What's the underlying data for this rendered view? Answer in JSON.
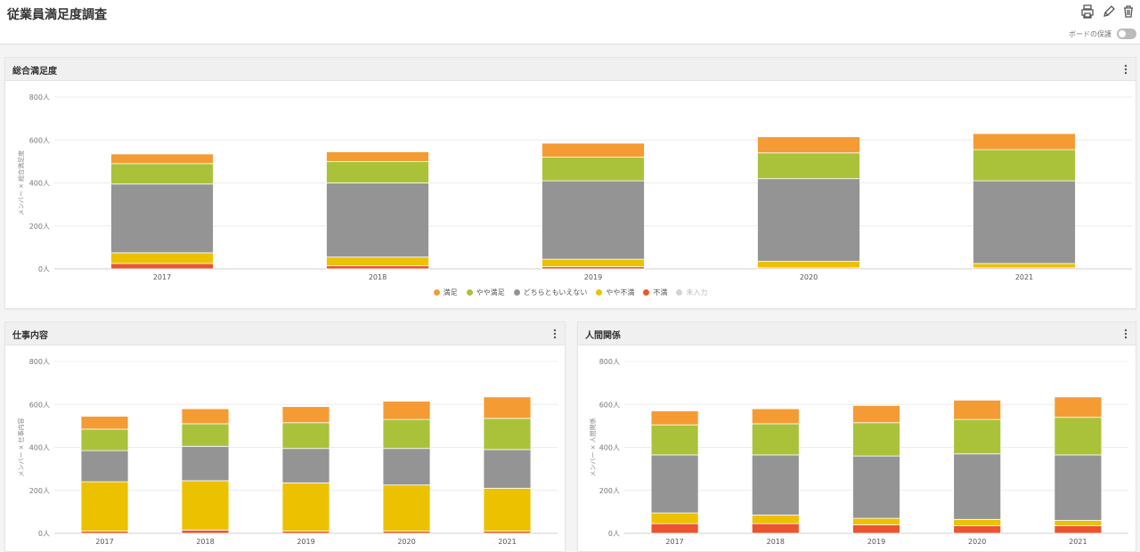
{
  "page": {
    "title": "従業員満足度調査",
    "protect_label": "ボードの保護",
    "icons": {
      "print": "print-icon",
      "edit": "pencil-icon",
      "delete": "trash-icon",
      "menu": "kebab-menu-icon"
    }
  },
  "colors": {
    "満足": "#f59b34",
    "やや満足": "#a9c23a",
    "どちらともいえない": "#949494",
    "やや不満": "#ecc100",
    "不満": "#ec5430",
    "未入力": "#d3d3d3"
  },
  "legend": [
    "満足",
    "やや満足",
    "どちらともいえない",
    "やや不満",
    "不満",
    "未入力"
  ],
  "chart_data": [
    {
      "type": "bar",
      "stacked": true,
      "title": "総合満足度",
      "ylabel": "メンバー × 総合満足度",
      "ylim": [
        0,
        800
      ],
      "yticks": [
        "0人",
        "200人",
        "400人",
        "600人",
        "800人"
      ],
      "yticks_values": [
        0,
        200,
        400,
        600,
        800
      ],
      "categories": [
        "2017",
        "2018",
        "2019",
        "2020",
        "2021"
      ],
      "series": [
        {
          "name": "不満",
          "values": [
            25,
            15,
            10,
            5,
            5
          ]
        },
        {
          "name": "やや不満",
          "values": [
            50,
            40,
            35,
            30,
            20
          ]
        },
        {
          "name": "どちらともいえない",
          "values": [
            320,
            345,
            365,
            385,
            385
          ]
        },
        {
          "name": "やや満足",
          "values": [
            95,
            100,
            110,
            120,
            145
          ]
        },
        {
          "name": "満足",
          "values": [
            45,
            45,
            65,
            75,
            75
          ]
        }
      ],
      "legend": "bottom-center"
    },
    {
      "type": "bar",
      "stacked": true,
      "title": "仕事内容",
      "ylabel": "メンバー × 仕事内容",
      "ylim": [
        0,
        800
      ],
      "yticks": [
        "0人",
        "200人",
        "400人",
        "600人",
        "800人"
      ],
      "yticks_values": [
        0,
        200,
        400,
        600,
        800
      ],
      "categories": [
        "2017",
        "2018",
        "2019",
        "2020",
        "2021"
      ],
      "series": [
        {
          "name": "不満",
          "values": [
            10,
            15,
            10,
            10,
            10
          ]
        },
        {
          "name": "やや不満",
          "values": [
            230,
            230,
            225,
            215,
            200
          ]
        },
        {
          "name": "どちらともいえない",
          "values": [
            145,
            160,
            160,
            170,
            180
          ]
        },
        {
          "name": "やや満足",
          "values": [
            100,
            105,
            120,
            135,
            145
          ]
        },
        {
          "name": "満足",
          "values": [
            60,
            70,
            75,
            85,
            100
          ]
        }
      ]
    },
    {
      "type": "bar",
      "stacked": true,
      "title": "人間関係",
      "ylabel": "メンバー × 人間関係",
      "ylim": [
        0,
        800
      ],
      "yticks": [
        "0人",
        "200人",
        "400人",
        "600人",
        "800人"
      ],
      "yticks_values": [
        0,
        200,
        400,
        600,
        800
      ],
      "categories": [
        "2017",
        "2018",
        "2019",
        "2020",
        "2021"
      ],
      "series": [
        {
          "name": "不満",
          "values": [
            45,
            45,
            40,
            35,
            35
          ]
        },
        {
          "name": "やや不満",
          "values": [
            50,
            40,
            30,
            30,
            25
          ]
        },
        {
          "name": "どちらともいえない",
          "values": [
            270,
            280,
            290,
            305,
            305
          ]
        },
        {
          "name": "やや満足",
          "values": [
            140,
            145,
            155,
            160,
            175
          ]
        },
        {
          "name": "満足",
          "values": [
            65,
            70,
            80,
            90,
            95
          ]
        }
      ]
    }
  ]
}
